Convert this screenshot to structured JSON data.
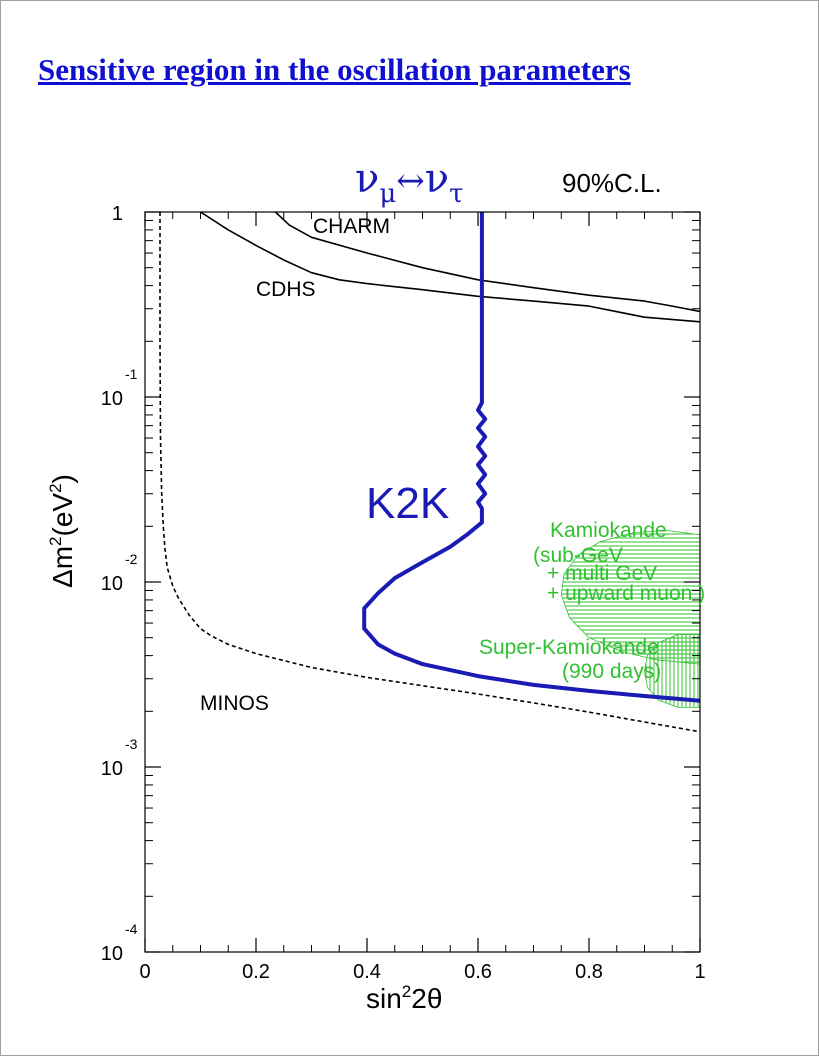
{
  "slide": {
    "title": "Sensitive region in the oscillation parameters"
  },
  "colors": {
    "title": "#1010d0",
    "k2k": "#1a1ab4",
    "kamiokande": "#30c030",
    "experiments": "#000000"
  },
  "chart_data": {
    "type": "line",
    "title": "",
    "channel_label": {
      "nu": "ν",
      "sub_left": "μ",
      "arrow": "↔",
      "sub_right": "τ"
    },
    "confidence_label": "90%C.L.",
    "xlabel": {
      "main": "sin",
      "sup": "2",
      "tail": "2θ"
    },
    "ylabel": {
      "main": "Δm",
      "sup": "2",
      "mid": "(eV",
      "sup2": "2",
      "tail": ")"
    },
    "xlim": [
      0,
      1
    ],
    "ylim": [
      0.0001,
      1
    ],
    "y_scale": "log",
    "x_ticks": [
      "0",
      "0.2",
      "0.4",
      "0.6",
      "0.8",
      "1"
    ],
    "x_tick_values": [
      0,
      0.2,
      0.4,
      0.6,
      0.8,
      1
    ],
    "y_ticks": [
      {
        "value": 1,
        "base": "1",
        "exp": ""
      },
      {
        "value": 0.1,
        "base": "10",
        "exp": "-1"
      },
      {
        "value": 0.01,
        "base": "10",
        "exp": "-2"
      },
      {
        "value": 0.001,
        "base": "10",
        "exp": "-3"
      },
      {
        "value": 0.0001,
        "base": "10",
        "exp": "-4"
      }
    ],
    "series": [
      {
        "name": "CHARM",
        "style": "solid",
        "x": [
          0.235,
          0.26,
          0.3,
          0.4,
          0.5,
          0.6,
          0.7,
          0.8,
          0.9,
          0.95,
          1.0
        ],
        "y": [
          1.0,
          0.85,
          0.73,
          0.6,
          0.5,
          0.43,
          0.39,
          0.355,
          0.33,
          0.31,
          0.29
        ]
      },
      {
        "name": "CDHS",
        "style": "solid",
        "x": [
          0.1,
          0.15,
          0.2,
          0.25,
          0.3,
          0.35,
          0.4,
          0.5,
          0.6,
          0.7,
          0.8,
          0.9,
          1.0
        ],
        "y": [
          1.0,
          0.8,
          0.66,
          0.55,
          0.47,
          0.43,
          0.41,
          0.38,
          0.35,
          0.33,
          0.31,
          0.27,
          0.255
        ]
      },
      {
        "name": "K2K",
        "style": "solid",
        "x": [
          0.607,
          0.607,
          0.6,
          0.613,
          0.6,
          0.613,
          0.6,
          0.613,
          0.6,
          0.613,
          0.6,
          0.613,
          0.6,
          0.607,
          0.607,
          0.58,
          0.55,
          0.5,
          0.45,
          0.42,
          0.395,
          0.395,
          0.42,
          0.45,
          0.5,
          0.6,
          0.7,
          0.8,
          0.9,
          1.0
        ],
        "y": [
          1.0,
          0.093,
          0.085,
          0.076,
          0.068,
          0.061,
          0.054,
          0.048,
          0.043,
          0.038,
          0.034,
          0.03,
          0.027,
          0.025,
          0.021,
          0.018,
          0.0155,
          0.0128,
          0.0105,
          0.0087,
          0.0072,
          0.0056,
          0.0046,
          0.0041,
          0.0036,
          0.0031,
          0.00278,
          0.00258,
          0.00242,
          0.00228
        ]
      },
      {
        "name": "MINOS",
        "style": "dashed",
        "x": [
          0.027,
          0.027,
          0.028,
          0.03,
          0.033,
          0.036,
          0.04,
          0.05,
          0.06,
          0.08,
          0.1,
          0.12,
          0.15,
          0.2,
          0.3,
          0.4,
          0.5,
          0.6,
          0.7,
          0.8,
          0.9,
          1.0
        ],
        "y": [
          1.0,
          0.2,
          0.06,
          0.03,
          0.02,
          0.015,
          0.012,
          0.0095,
          0.0082,
          0.0066,
          0.0056,
          0.0051,
          0.0046,
          0.0041,
          0.00345,
          0.00305,
          0.00275,
          0.00248,
          0.00222,
          0.00198,
          0.00175,
          0.00155
        ]
      }
    ],
    "regions": [
      {
        "name": "Kamiokande",
        "hatch": "horizontal",
        "outline": [
          [
            1.0,
            0.018
          ],
          [
            0.94,
            0.019
          ],
          [
            0.88,
            0.0185
          ],
          [
            0.82,
            0.0165
          ],
          [
            0.78,
            0.014
          ],
          [
            0.755,
            0.011
          ],
          [
            0.75,
            0.0085
          ],
          [
            0.765,
            0.0064
          ],
          [
            0.8,
            0.005
          ],
          [
            0.86,
            0.0042
          ],
          [
            0.92,
            0.0038
          ],
          [
            1.0,
            0.0036
          ]
        ]
      },
      {
        "name": "Super-Kamiokande",
        "hatch": "vertical",
        "outline": [
          [
            1.0,
            0.0052
          ],
          [
            0.96,
            0.0052
          ],
          [
            0.925,
            0.0047
          ],
          [
            0.905,
            0.004
          ],
          [
            0.9,
            0.0033
          ],
          [
            0.905,
            0.0027
          ],
          [
            0.925,
            0.0023
          ],
          [
            0.96,
            0.0021
          ],
          [
            1.0,
            0.0021
          ]
        ]
      }
    ],
    "annotations": [
      {
        "text": "CHARM",
        "series": "CHARM"
      },
      {
        "text": "CDHS",
        "series": "CDHS"
      },
      {
        "text": "K2K",
        "series": "K2K"
      },
      {
        "text": "MINOS",
        "series": "MINOS"
      },
      {
        "text": "Kamiokande",
        "series": "Kamiokande"
      },
      {
        "text": "(sub-GeV",
        "series": "Kamiokande"
      },
      {
        "text": "+ multi GeV",
        "series": "Kamiokande"
      },
      {
        "text": "+ upward muon )",
        "series": "Kamiokande"
      },
      {
        "text": "Super-Kamiokande",
        "series": "Super-Kamiokande"
      },
      {
        "text": "(990 days)",
        "series": "Super-Kamiokande"
      }
    ]
  }
}
